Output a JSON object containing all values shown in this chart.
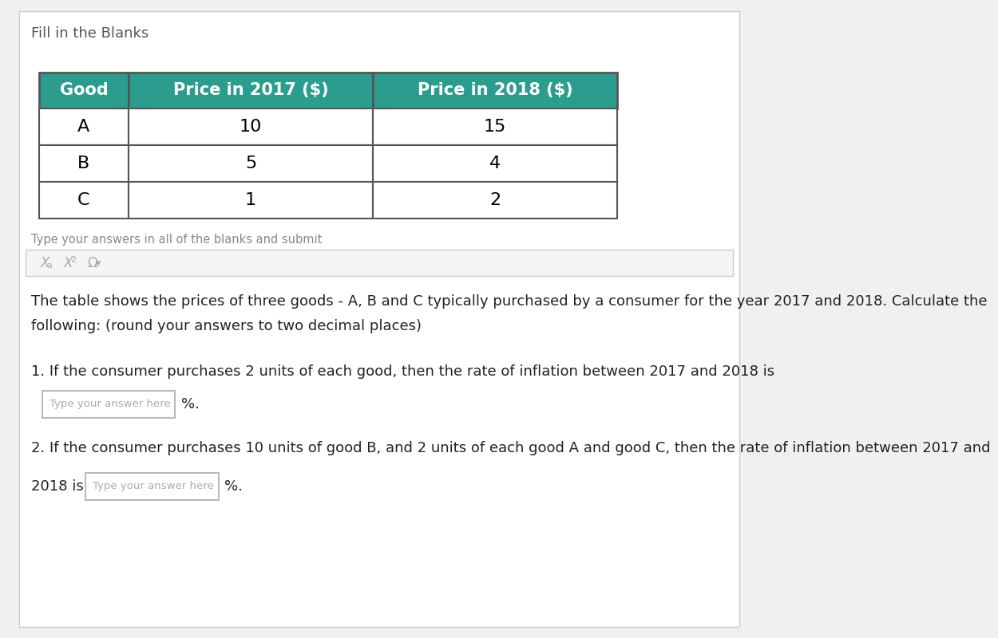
{
  "title": "Fill in the Blanks",
  "title_fontsize": 13,
  "title_color": "#555555",
  "background_color": "#ffffff",
  "page_background": "#f0f0f0",
  "table_headers": [
    "Good",
    "Price in 2017 ($)",
    "Price in 2018 ($)"
  ],
  "table_rows": [
    [
      "A",
      "10",
      "15"
    ],
    [
      "B",
      "5",
      "4"
    ],
    [
      "C",
      "1",
      "2"
    ]
  ],
  "header_bg_color": "#2a9d8f",
  "header_text_color": "#ffffff",
  "row_bg_color": "#ffffff",
  "row_text_color": "#000000",
  "border_color": "#555555",
  "toolbar_bg": "#f5f5f5",
  "toolbar_border": "#cccccc",
  "description_line1": "The table shows the prices of three goods - A, B and C typically purchased by a consumer for the year 2017 and 2018. Calculate the",
  "description_line2": "following: (round your answers to two decimal places)",
  "q1_text": "1. If the consumer purchases 2 units of each good, then the rate of inflation between 2017 and 2018 is",
  "q1_placeholder": "Type your answer here",
  "q1_suffix": "%.",
  "q2_text": "2. If the consumer purchases 10 units of good B, and 2 units of each good A and good C, then the rate of inflation between 2017 and",
  "q2_prefix": "2018 is",
  "q2_placeholder": "Type your answer here",
  "q2_suffix": "%.",
  "answer_box_border": "#aaaaaa",
  "answer_box_bg": "#ffffff",
  "placeholder_color": "#aaaaaa",
  "text_fontsize": 13,
  "small_fontsize": 10.5,
  "instr_text": "Type your answers in all of the blanks and submit",
  "toolbar_symbols_color": "#aaaaaa",
  "card_border": "#cccccc"
}
